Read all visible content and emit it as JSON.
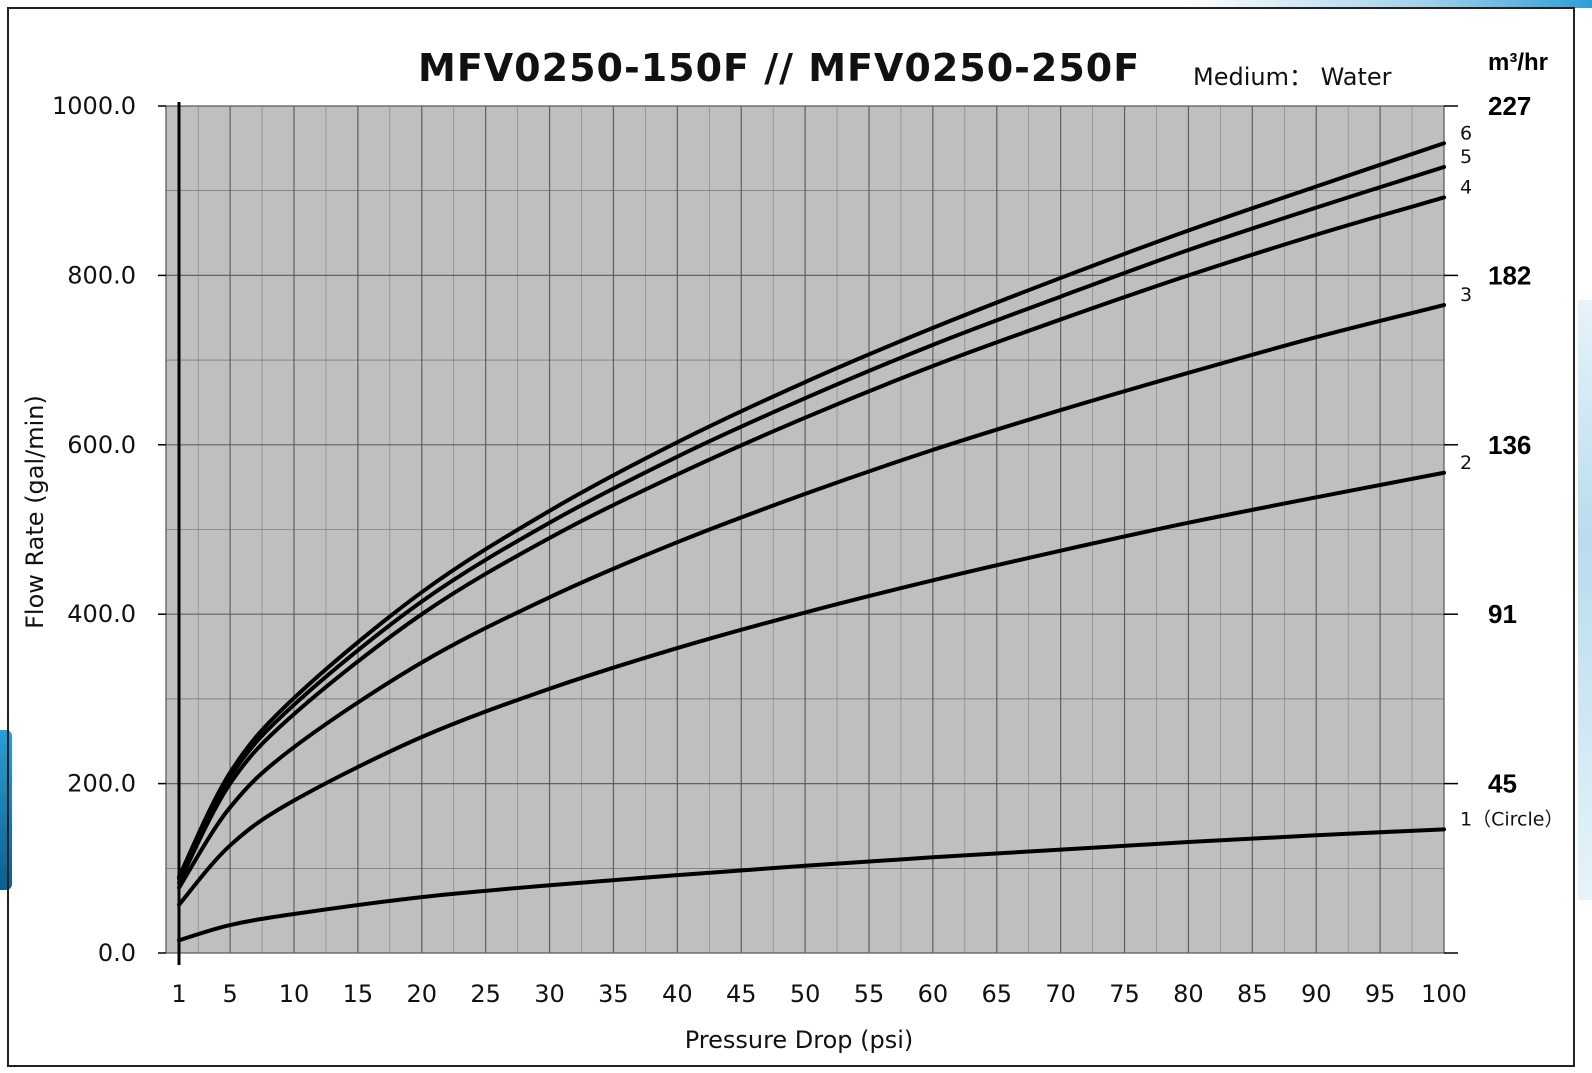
{
  "colors": {
    "plot_background": "#c0bfbf",
    "grid": "#555555",
    "curve": "#000000",
    "frame": "#222222",
    "accent_blue": "#1a8fc9"
  },
  "chart_data": {
    "type": "line",
    "title": "MFV0250-150F // MFV0250-250F",
    "medium": "Medium： Water",
    "xlabel": "Pressure Drop  (psi)",
    "ylabel": "Flow Rate   (gal/min)",
    "y2label": "m³/hr",
    "xlim": [
      1,
      100
    ],
    "ylim": [
      0,
      1000
    ],
    "x_ticks": [
      "1",
      "5",
      "10",
      "15",
      "20",
      "25",
      "30",
      "35",
      "40",
      "45",
      "50",
      "55",
      "60",
      "65",
      "70",
      "75",
      "80",
      "85",
      "90",
      "95",
      "100"
    ],
    "x_tick_values": [
      1,
      5,
      10,
      15,
      20,
      25,
      30,
      35,
      40,
      45,
      50,
      55,
      60,
      65,
      70,
      75,
      80,
      85,
      90,
      95,
      100
    ],
    "y_ticks": [
      "0.0",
      "200.0",
      "400.0",
      "600.0",
      "800.0",
      "1000.0"
    ],
    "y_tick_values": [
      0,
      200,
      400,
      600,
      800,
      1000
    ],
    "y2_ticks": [
      {
        "label": "227",
        "value": 1000
      },
      {
        "label": "182",
        "value": 800
      },
      {
        "label": "136",
        "value": 600
      },
      {
        "label": "91",
        "value": 400
      },
      {
        "label": "45",
        "value": 200
      }
    ],
    "grid": true,
    "series": [
      {
        "name": "1（Circle）",
        "x": [
          1,
          5,
          10,
          20,
          30,
          40,
          50,
          60,
          70,
          80,
          90,
          100
        ],
        "values": [
          15,
          33,
          46,
          66,
          80,
          92,
          103,
          113,
          122,
          131,
          139,
          146
        ]
      },
      {
        "name": "2",
        "x": [
          1,
          5,
          10,
          20,
          30,
          40,
          50,
          60,
          70,
          80,
          90,
          100
        ],
        "values": [
          57,
          127,
          180,
          255,
          312,
          360,
          402,
          440,
          475,
          508,
          538,
          567
        ]
      },
      {
        "name": "3",
        "x": [
          1,
          5,
          10,
          20,
          30,
          40,
          50,
          60,
          70,
          80,
          90,
          100
        ],
        "values": [
          77,
          172,
          243,
          343,
          420,
          485,
          542,
          594,
          641,
          685,
          727,
          765
        ]
      },
      {
        "name": "4",
        "x": [
          1,
          5,
          10,
          20,
          30,
          40,
          50,
          60,
          70,
          80,
          90,
          100
        ],
        "values": [
          83,
          200,
          282,
          400,
          490,
          565,
          632,
          693,
          748,
          800,
          848,
          892
        ]
      },
      {
        "name": "5",
        "x": [
          1,
          5,
          10,
          20,
          30,
          40,
          50,
          60,
          70,
          80,
          90,
          100
        ],
        "values": [
          88,
          208,
          293,
          415,
          508,
          586,
          655,
          718,
          775,
          830,
          880,
          928
        ]
      },
      {
        "name": "6",
        "x": [
          1,
          5,
          10,
          20,
          30,
          40,
          50,
          60,
          70,
          80,
          90,
          100
        ],
        "values": [
          90,
          213,
          301,
          426,
          522,
          603,
          674,
          738,
          797,
          853,
          905,
          956
        ]
      }
    ]
  }
}
